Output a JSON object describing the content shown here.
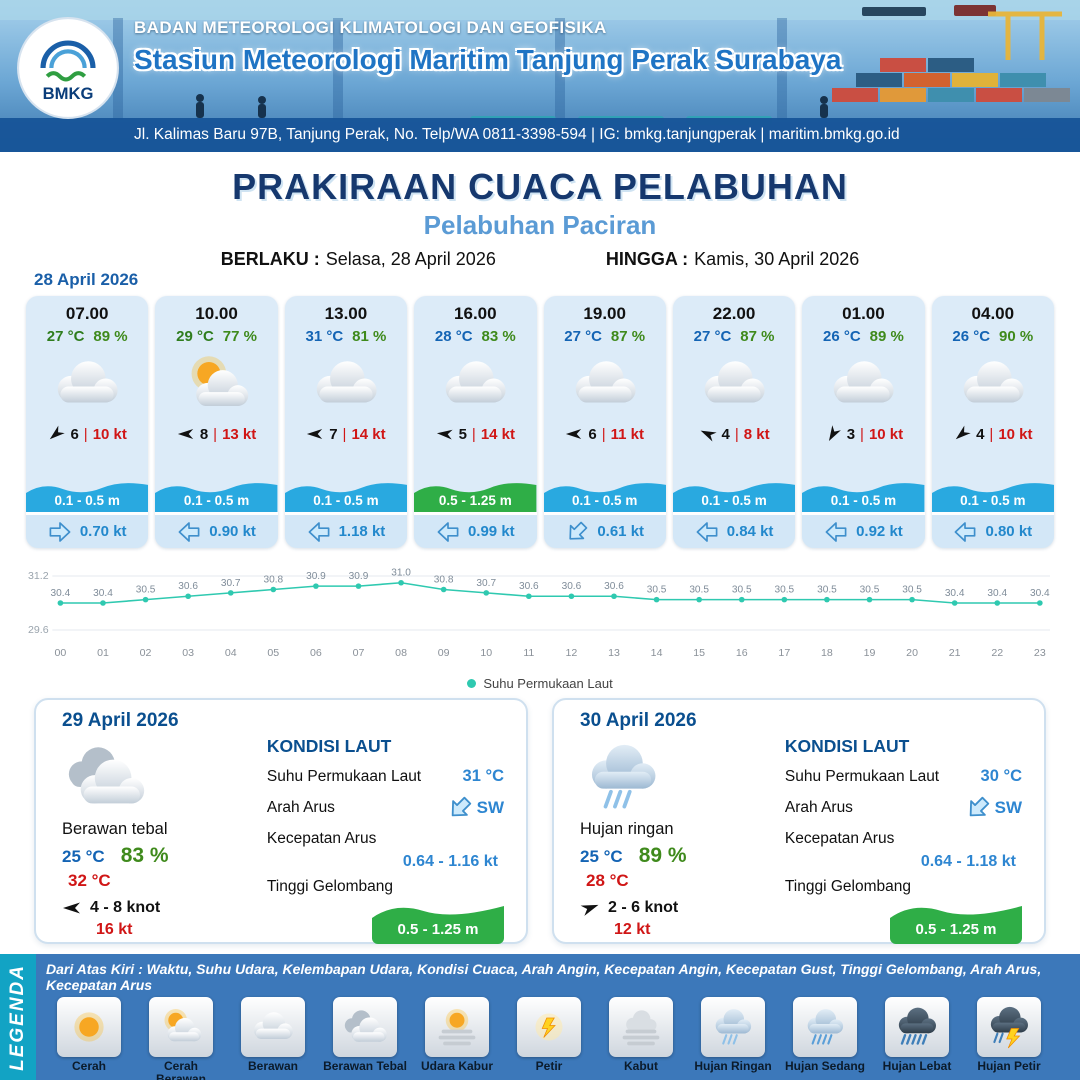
{
  "header": {
    "agency": "BADAN METEOROLOGI KLIMATOLOGI DAN GEOFISIKA",
    "station": "Stasiun Meteorologi Maritim Tanjung Perak Surabaya",
    "address": "Jl. Kalimas Baru 97B, Tanjung Perak, No. Telp/WA 0811-3398-594 | IG: bmkg.tanjungperak | maritim.bmkg.go.id",
    "logo_text": "BMKG"
  },
  "title": "PRAKIRAAN CUACA PELABUHAN",
  "subtitle": "Pelabuhan Paciran",
  "validity": {
    "berlaku_label": "BERLAKU :",
    "berlaku_value": "Selasa, 28 April 2026",
    "hingga_label": "HINGGA :",
    "hingga_value": "Kamis, 30 April 2026"
  },
  "forecast_date": "28 April 2026",
  "colors": {
    "temp_green": "#2f7d1e",
    "temp_blue": "#1464b4",
    "humidity_green": "#3f8a1c",
    "gust_red": "#d01616",
    "current_blue": "#2288cc",
    "wave_blue": "#29a9e0",
    "wave_green": "#2fae47"
  },
  "hourly": [
    {
      "time": "07.00",
      "temp": "27 °C",
      "temp_color": "#2f7d1e",
      "humidity": "89 %",
      "icon": "berawan",
      "wind_deg": 140,
      "wind": "6",
      "gust": "10 kt",
      "wave": "0.1 - 0.5 m",
      "wave_color": "#29a9e0",
      "current_deg": 0,
      "current": "0.70 kt"
    },
    {
      "time": "10.00",
      "temp": "29 °C",
      "temp_color": "#2f7d1e",
      "humidity": "77 %",
      "icon": "cerah-berawan",
      "wind_deg": 180,
      "wind": "8",
      "gust": "13 kt",
      "wave": "0.1 - 0.5 m",
      "wave_color": "#29a9e0",
      "current_deg": 180,
      "current": "0.90 kt"
    },
    {
      "time": "13.00",
      "temp": "31 °C",
      "temp_color": "#1464b4",
      "humidity": "81 %",
      "icon": "berawan",
      "wind_deg": 180,
      "wind": "7",
      "gust": "14 kt",
      "wave": "0.1 - 0.5 m",
      "wave_color": "#29a9e0",
      "current_deg": 180,
      "current": "1.18 kt"
    },
    {
      "time": "16.00",
      "temp": "28 °C",
      "temp_color": "#1464b4",
      "humidity": "83 %",
      "icon": "berawan",
      "wind_deg": 185,
      "wind": "5",
      "gust": "14 kt",
      "wave": "0.5 - 1.25 m",
      "wave_color": "#2fae47",
      "current_deg": 180,
      "current": "0.99 kt"
    },
    {
      "time": "19.00",
      "temp": "27 °C",
      "temp_color": "#1464b4",
      "humidity": "87 %",
      "icon": "berawan",
      "wind_deg": 180,
      "wind": "6",
      "gust": "11 kt",
      "wave": "0.1 - 0.5 m",
      "wave_color": "#29a9e0",
      "current_deg": 135,
      "current": "0.61 kt"
    },
    {
      "time": "22.00",
      "temp": "27 °C",
      "temp_color": "#1464b4",
      "humidity": "87 %",
      "icon": "berawan",
      "wind_deg": 205,
      "wind": "4",
      "gust": "8 kt",
      "wave": "0.1 - 0.5 m",
      "wave_color": "#29a9e0",
      "current_deg": 180,
      "current": "0.84 kt"
    },
    {
      "time": "01.00",
      "temp": "26 °C",
      "temp_color": "#1464b4",
      "humidity": "89 %",
      "icon": "berawan",
      "wind_deg": 120,
      "wind": "3",
      "gust": "10 kt",
      "wave": "0.1 - 0.5 m",
      "wave_color": "#29a9e0",
      "current_deg": 180,
      "current": "0.92 kt"
    },
    {
      "time": "04.00",
      "temp": "26 °C",
      "temp_color": "#1464b4",
      "humidity": "90 %",
      "icon": "berawan",
      "wind_deg": 140,
      "wind": "4",
      "gust": "10 kt",
      "wave": "0.1 - 0.5 m",
      "wave_color": "#29a9e0",
      "current_deg": 180,
      "current": "0.80 kt"
    }
  ],
  "chart_data": {
    "type": "line",
    "series_name": "Suhu Permukaan Laut",
    "x": [
      "00",
      "01",
      "02",
      "03",
      "04",
      "05",
      "06",
      "07",
      "08",
      "09",
      "10",
      "11",
      "12",
      "13",
      "14",
      "15",
      "16",
      "17",
      "18",
      "19",
      "20",
      "21",
      "22",
      "23"
    ],
    "values": [
      30.4,
      30.4,
      30.5,
      30.6,
      30.7,
      30.8,
      30.9,
      30.9,
      31.0,
      30.8,
      30.7,
      30.6,
      30.6,
      30.6,
      30.5,
      30.5,
      30.5,
      30.5,
      30.5,
      30.5,
      30.5,
      30.4,
      30.4,
      30.4
    ],
    "ylim": [
      29.6,
      31.2
    ],
    "line_color": "#2fc9b0",
    "grid": true,
    "legend_position": "bottom"
  },
  "daily": [
    {
      "date": "29 April 2026",
      "icon": "berawan-tebal",
      "condition": "Berawan tebal",
      "temp_min": "25 °C",
      "humidity": "83 %",
      "temp_max": "32 °C",
      "wind_deg": 180,
      "wind": "4 - 8 knot",
      "gust": "16 kt",
      "sea_heading": "KONDISI LAUT",
      "sst_label": "Suhu Permukaan Laut",
      "sst": "31 °C",
      "current_dir_label": "Arah Arus",
      "current_dir": "SW",
      "current_deg": 135,
      "current_speed_label": "Kecepatan Arus",
      "current_speed": "0.64 - 1.16 kt",
      "wave_label": "Tinggi Gelombang",
      "wave": "0.5 - 1.25 m"
    },
    {
      "date": "30 April 2026",
      "icon": "hujan-ringan",
      "condition": "Hujan ringan",
      "temp_min": "25 °C",
      "humidity": "89 %",
      "temp_max": "28 °C",
      "wind_deg": 340,
      "wind": "2 - 6 knot",
      "gust": "12 kt",
      "sea_heading": "KONDISI LAUT",
      "sst_label": "Suhu Permukaan Laut",
      "sst": "30 °C",
      "current_dir_label": "Arah Arus",
      "current_dir": "SW",
      "current_deg": 135,
      "current_speed_label": "Kecepatan Arus",
      "current_speed": "0.64 - 1.18 kt",
      "wave_label": "Tinggi Gelombang",
      "wave": "0.5 - 1.25 m"
    }
  ],
  "legend": {
    "sidebar": "LEGENDA",
    "description": "Dari Atas Kiri : Waktu, Suhu Udara, Kelembapan Udara, Kondisi Cuaca, Arah Angin, Kecepatan Angin, Kecepatan Gust, Tinggi Gelombang, Arah Arus, Kecepatan Arus",
    "items": [
      {
        "label": "Cerah",
        "icon": "cerah"
      },
      {
        "label": "Cerah Berawan",
        "icon": "cerah-berawan"
      },
      {
        "label": "Berawan",
        "icon": "berawan"
      },
      {
        "label": "Berawan Tebal",
        "icon": "berawan-tebal"
      },
      {
        "label": "Udara Kabur",
        "icon": "udara-kabur"
      },
      {
        "label": "Petir",
        "icon": "petir"
      },
      {
        "label": "Kabut",
        "icon": "kabut"
      },
      {
        "label": "Hujan Ringan",
        "icon": "hujan-ringan"
      },
      {
        "label": "Hujan Sedang",
        "icon": "hujan-sedang"
      },
      {
        "label": "Hujan Lebat",
        "icon": "hujan-lebat"
      },
      {
        "label": "Hujan Petir",
        "icon": "hujan-petir"
      }
    ]
  }
}
